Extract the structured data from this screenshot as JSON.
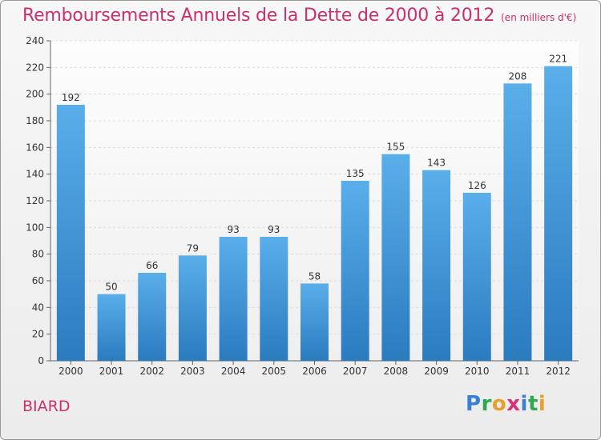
{
  "chart_data": {
    "type": "bar",
    "title": "Remboursements Annuels de la Dette de 2000 à 2012",
    "unit": "(en milliers d'€)",
    "categories": [
      "2000",
      "2001",
      "2002",
      "2003",
      "2004",
      "2005",
      "2006",
      "2007",
      "2008",
      "2009",
      "2010",
      "2011",
      "2012"
    ],
    "values": [
      192,
      50,
      66,
      79,
      93,
      93,
      58,
      135,
      155,
      143,
      126,
      208,
      221
    ],
    "ylim": [
      0,
      240
    ],
    "yticks": [
      0,
      20,
      40,
      60,
      80,
      100,
      120,
      140,
      160,
      180,
      200,
      220,
      240
    ],
    "grid": true,
    "bar_color": "#4a9fe0"
  },
  "commune": "BIARD",
  "logo": {
    "text": "Proxiti",
    "colors": [
      "#3a7fd0",
      "#2fa84f",
      "#e8a02a",
      "#d8307a",
      "#3a7fd0",
      "#2fa84f",
      "#e8a02a"
    ]
  }
}
